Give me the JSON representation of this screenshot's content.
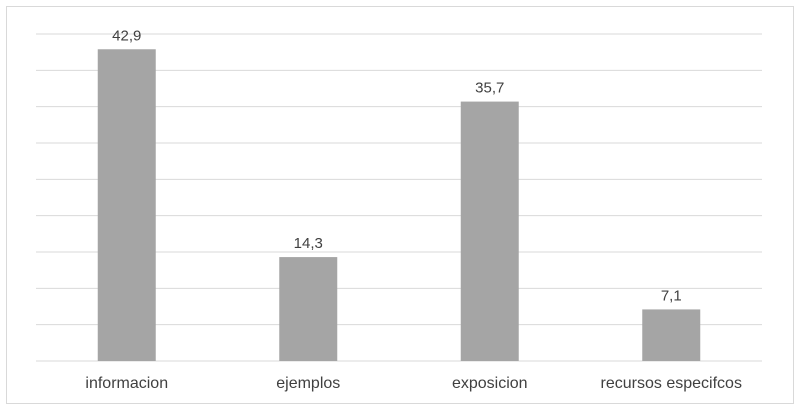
{
  "chart_data": {
    "type": "bar",
    "categories": [
      "informacion",
      "ejemplos",
      "exposicion",
      "recursos especifcos"
    ],
    "values": [
      42.9,
      14.3,
      35.7,
      7.1
    ],
    "data_labels": [
      "42,9",
      "14,3",
      "35,7",
      "7,1"
    ],
    "ylim": [
      0,
      45
    ],
    "grid": true,
    "bar_color": "#a5a5a5",
    "gridline_color": "#d9d9d9",
    "text_color": "#404040"
  }
}
